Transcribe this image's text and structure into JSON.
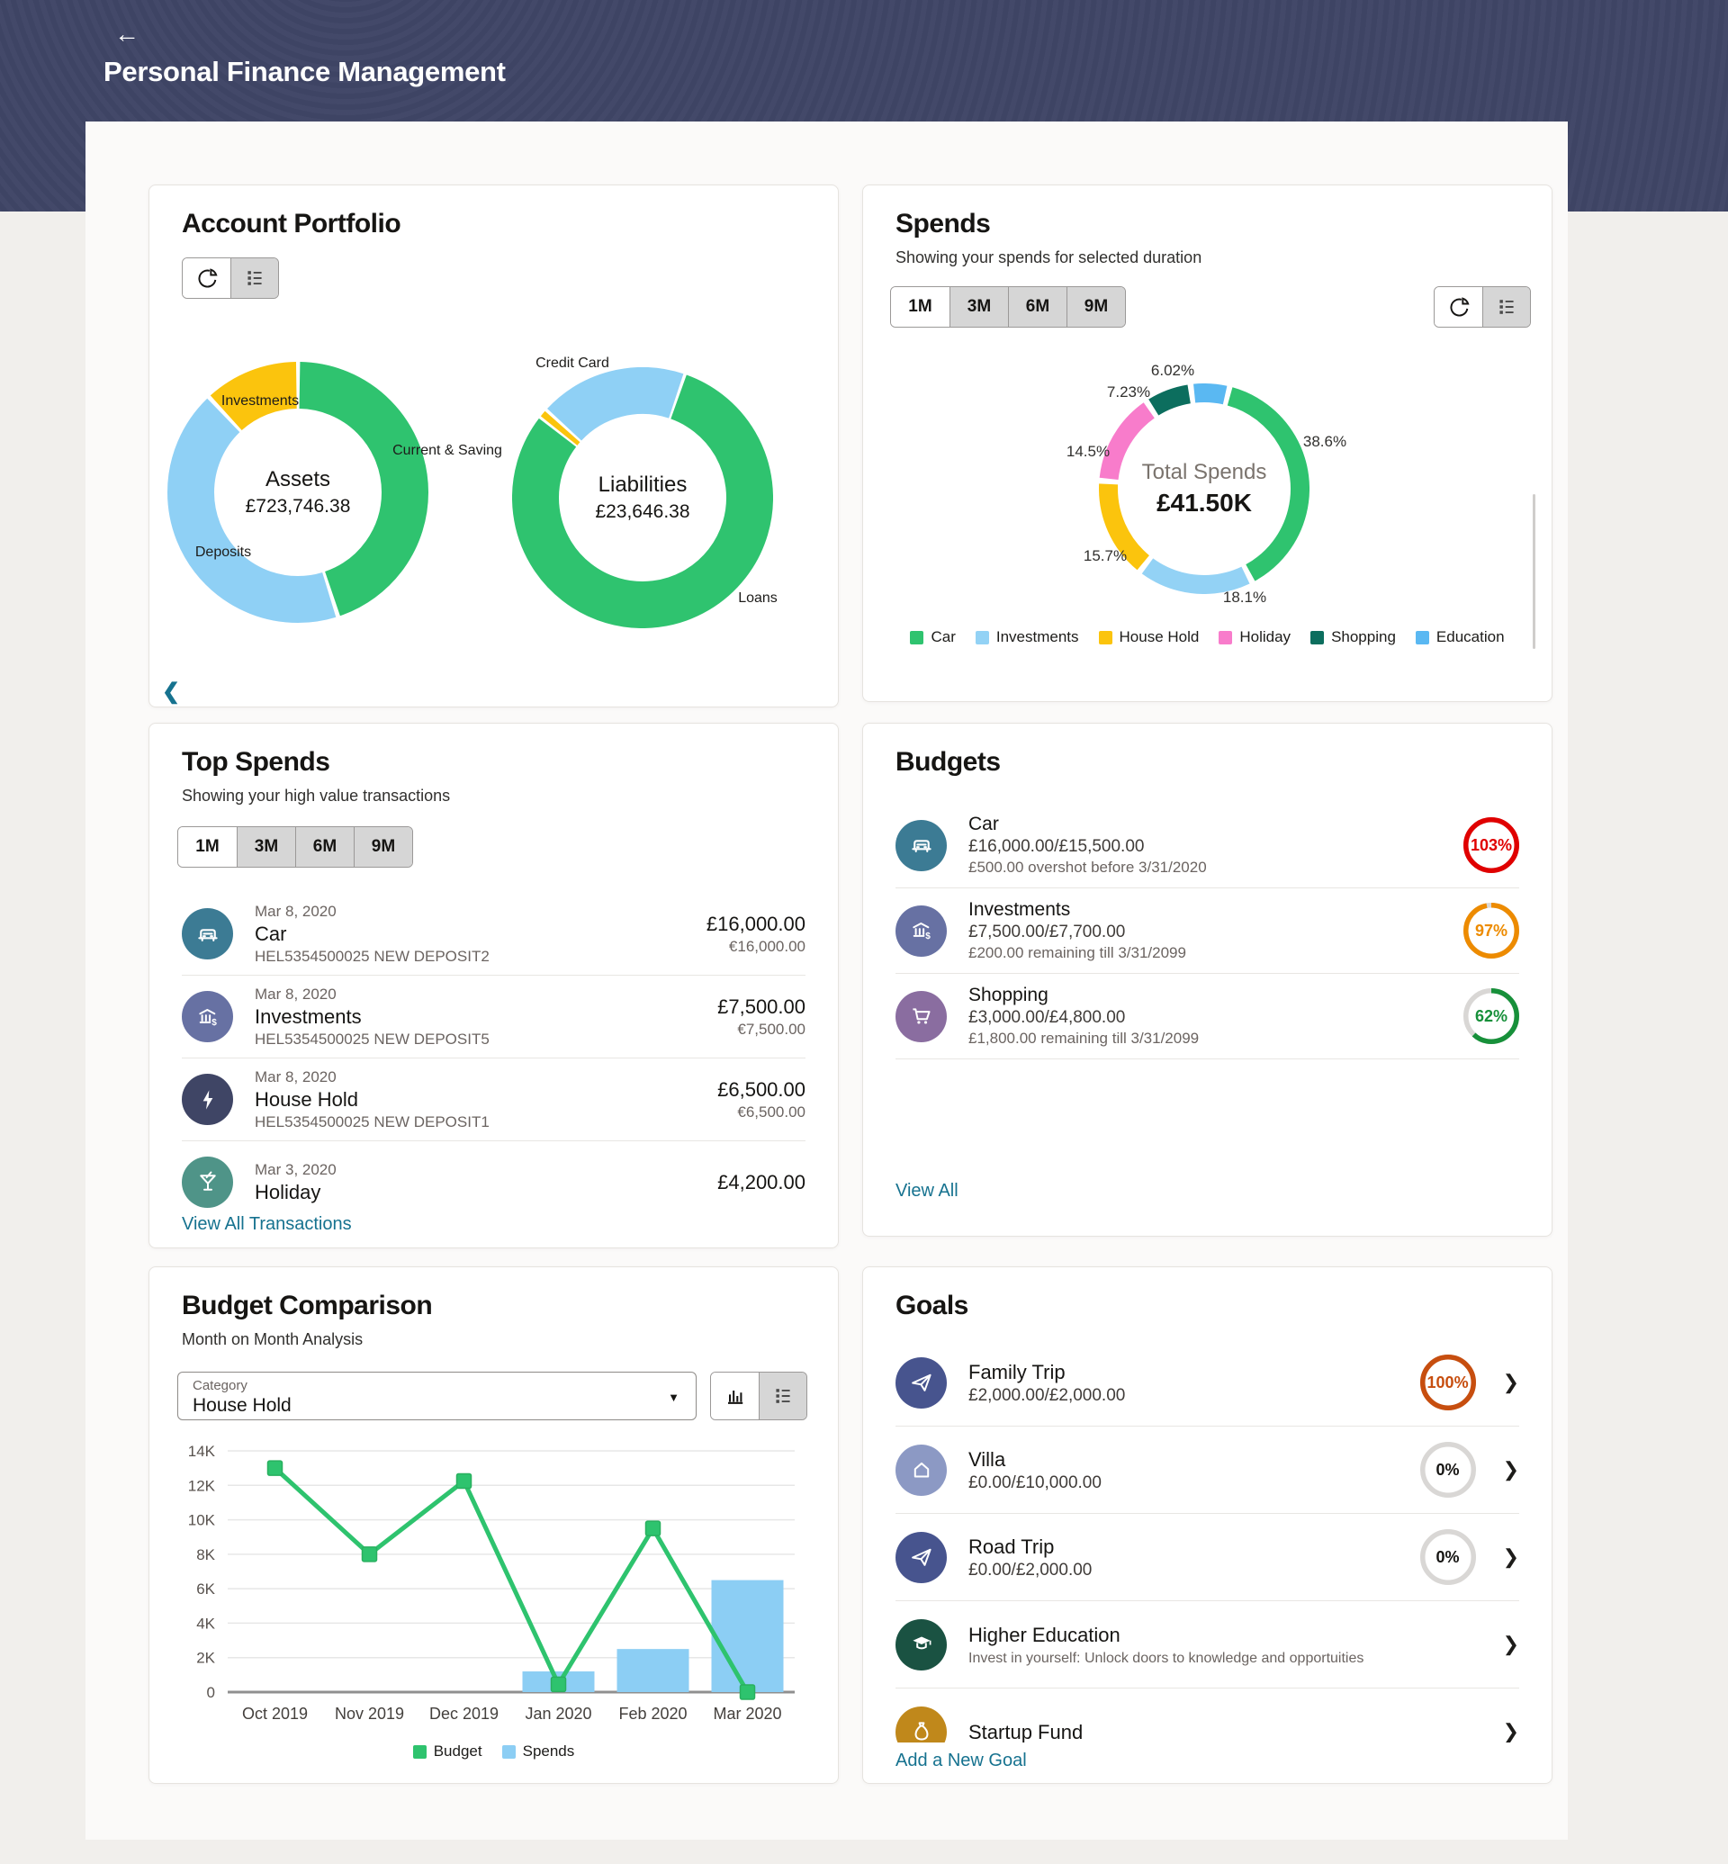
{
  "header": {
    "title": "Personal Finance Management",
    "back_icon": "arrow-left"
  },
  "account_portfolio": {
    "title": "Account Portfolio",
    "toggle": {
      "active": "pie",
      "icons": [
        "pie-chart",
        "list-view"
      ]
    },
    "prev_arrow": "❮",
    "assets": {
      "label": "Assets",
      "value": "£723,746.38",
      "slices": [
        {
          "label": "Current & Saving",
          "pct": 45,
          "color": "#2FC36F"
        },
        {
          "label": "Deposits",
          "pct": 43,
          "color": "#8FD0F5"
        },
        {
          "label": "Investments",
          "pct": 12,
          "color": "#FBC40D"
        }
      ]
    },
    "liabilities": {
      "label": "Liabilities",
      "value": "£23,646.38",
      "slices": [
        {
          "label": "",
          "pct": 1.2,
          "color": "#FBC40D"
        },
        {
          "label": "Credit Card",
          "pct": 18.5,
          "color": "#8FD0F5"
        },
        {
          "label": "Loans",
          "pct": 80.3,
          "color": "#2FC36F"
        }
      ]
    }
  },
  "spends": {
    "title": "Spends",
    "subtitle": "Showing your spends for selected duration",
    "durations": [
      "1M",
      "3M",
      "6M",
      "9M"
    ],
    "active_duration": "1M",
    "toggle": {
      "active": "pie",
      "icons": [
        "pie-chart",
        "list-view"
      ]
    },
    "total_label": "Total Spends",
    "total_value": "£41.50K",
    "slices": [
      {
        "label": "Car",
        "pct": 38.6,
        "display": "38.6%",
        "color": "#2FC36F"
      },
      {
        "label": "Investments",
        "pct": 18.1,
        "display": "18.1%",
        "color": "#93D2F5"
      },
      {
        "label": "House Hold",
        "pct": 15.7,
        "display": "15.7%",
        "color": "#FBC40D"
      },
      {
        "label": "Holiday",
        "pct": 14.5,
        "display": "14.5%",
        "color": "#F87CCB"
      },
      {
        "label": "Shopping",
        "pct": 7.23,
        "display": "7.23%",
        "color": "#0C6E5E"
      },
      {
        "label": "Education",
        "pct": 6.02,
        "display": "6.02%",
        "color": "#5AB8F2"
      }
    ]
  },
  "top_spends": {
    "title": "Top Spends",
    "subtitle": "Showing your high value transactions",
    "durations": [
      "1M",
      "3M",
      "6M",
      "9M"
    ],
    "active_duration": "1M",
    "transactions": [
      {
        "date": "Mar 8, 2020",
        "title": "Car",
        "ref": "HEL5354500025 NEW DEPOSIT2",
        "amount": "£16,000.00",
        "amount_eur": "€16,000.00",
        "icon": "car",
        "color": "#3C7B94"
      },
      {
        "date": "Mar 8, 2020",
        "title": "Investments",
        "ref": "HEL5354500025 NEW DEPOSIT5",
        "amount": "£7,500.00",
        "amount_eur": "€7,500.00",
        "icon": "bank",
        "color": "#6771A3"
      },
      {
        "date": "Mar 8, 2020",
        "title": "House Hold",
        "ref": "HEL5354500025 NEW DEPOSIT1",
        "amount": "£6,500.00",
        "amount_eur": "€6,500.00",
        "icon": "bolt",
        "color": "#3F4565"
      },
      {
        "date": "Mar 3, 2020",
        "title": "Holiday",
        "ref": "",
        "amount": "£4,200.00",
        "amount_eur": "",
        "icon": "cocktail",
        "color": "#4F9488"
      }
    ],
    "view_all": "View All Transactions"
  },
  "budgets": {
    "title": "Budgets",
    "items": [
      {
        "title": "Car",
        "amounts": "£16,000.00/£15,500.00",
        "note": "£500.00 overshot before 3/31/2020",
        "pct": 103,
        "pct_display": "103%",
        "ring_color": "#E00000",
        "text_color": "#E00000",
        "icon": "car",
        "color": "#3C7B94"
      },
      {
        "title": "Investments",
        "amounts": "£7,500.00/£7,700.00",
        "note": "£200.00 remaining till 3/31/2099",
        "pct": 97,
        "pct_display": "97%",
        "ring_color": "#ED8B00",
        "text_color": "#ED8B00",
        "icon": "bank",
        "color": "#6771A3"
      },
      {
        "title": "Shopping",
        "amounts": "£3,000.00/£4,800.00",
        "note": "£1,800.00 remaining till 3/31/2099",
        "pct": 62,
        "pct_display": "62%",
        "ring_color": "#17903A",
        "text_color": "#17903A",
        "icon": "cart",
        "color": "#8A6DA0"
      }
    ],
    "view_all": "View All"
  },
  "budget_comparison": {
    "title": "Budget Comparison",
    "subtitle": "Month on Month Analysis",
    "category_label": "Category",
    "category_value": "House Hold",
    "toggle": {
      "active": "bars",
      "icons": [
        "bar-chart",
        "list-view"
      ]
    },
    "chart_data": {
      "type": "mixed",
      "categories": [
        "Oct 2019",
        "Nov 2019",
        "Dec 2019",
        "Jan 2020",
        "Feb 2020",
        "Mar 2020"
      ],
      "series": [
        {
          "name": "Budget",
          "type": "line",
          "color": "#2EC36E",
          "values": [
            13000,
            8000,
            12250,
            450,
            9500,
            0
          ]
        },
        {
          "name": "Spends",
          "type": "bar",
          "color": "#8CCEF4",
          "values": [
            null,
            null,
            null,
            1200,
            2500,
            6500
          ]
        }
      ],
      "y_ticks": [
        "14K",
        "12K",
        "10K",
        "8K",
        "6K",
        "4K",
        "2K",
        "0"
      ],
      "ymax": 14000,
      "grid": true,
      "legend_position": "bottom"
    }
  },
  "goals": {
    "title": "Goals",
    "items": [
      {
        "title": "Family Trip",
        "amount": "£2,000.00/£2,000.00",
        "subtitle": "",
        "pct": 100,
        "pct_display": "100%",
        "ring_color": "#C74E0F",
        "text_color": "#C74E0F",
        "icon": "plane",
        "color": "#47548E"
      },
      {
        "title": "Villa",
        "amount": "£0.00/£10,000.00",
        "subtitle": "",
        "pct": 0,
        "pct_display": "0%",
        "ring_color": "#D9D7D5",
        "text_color": "#161513",
        "icon": "home",
        "color": "#8C99C4"
      },
      {
        "title": "Road Trip",
        "amount": "£0.00/£2,000.00",
        "subtitle": "",
        "pct": 0,
        "pct_display": "0%",
        "ring_color": "#D9D7D5",
        "text_color": "#161513",
        "icon": "plane",
        "color": "#47548E"
      },
      {
        "title": "Higher Education",
        "amount": "",
        "subtitle": "Invest in yourself: Unlock doors to knowledge and opportuities",
        "pct": null,
        "pct_display": "",
        "icon": "grad",
        "color": "#1A5242"
      },
      {
        "title": "Startup Fund",
        "amount": "",
        "subtitle": "",
        "pct": null,
        "pct_display": "",
        "icon": "moneybag",
        "color": "#C0881B"
      }
    ],
    "add_goal": "Add a New Goal"
  }
}
